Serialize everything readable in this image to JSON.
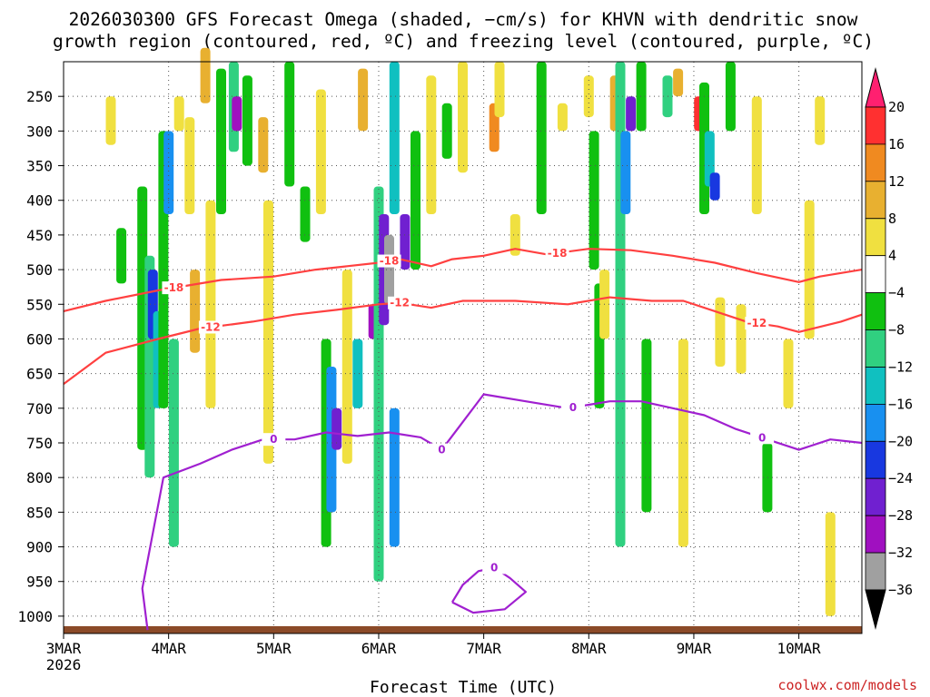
{
  "colors": {
    "background": "#ffffff",
    "ground": "#8b4a28",
    "dgz_contour": "#ff4040",
    "freezing_contour": "#a020d0",
    "grid": "#555555",
    "credit": "#cc2222"
  },
  "chart_data": {
    "type": "heatmap",
    "title_lines": [
      "2026030300 GFS Forecast Omega (shaded, −cm/s) for KHVN with dendritic snow",
      "growth region (contoured, red, ºC) and freezing level (contoured, purple, ºC)"
    ],
    "xlabel": "Forecast Time (UTC)",
    "ylabel": "",
    "credit": "coolwx.com/models",
    "x_unit": "days since 2026-03-03 00Z",
    "xlim": [
      0,
      7.6
    ],
    "ylim_hpa": [
      200,
      1025
    ],
    "x_ticks": [
      {
        "x": 0,
        "label": "3MAR",
        "sublabel": "2026"
      },
      {
        "x": 1,
        "label": "4MAR",
        "sublabel": ""
      },
      {
        "x": 2,
        "label": "5MAR",
        "sublabel": ""
      },
      {
        "x": 3,
        "label": "6MAR",
        "sublabel": ""
      },
      {
        "x": 4,
        "label": "7MAR",
        "sublabel": ""
      },
      {
        "x": 5,
        "label": "8MAR",
        "sublabel": ""
      },
      {
        "x": 6,
        "label": "9MAR",
        "sublabel": ""
      },
      {
        "x": 7,
        "label": "10MAR",
        "sublabel": ""
      }
    ],
    "y_ticks": [
      250,
      300,
      350,
      400,
      450,
      500,
      550,
      600,
      650,
      700,
      750,
      800,
      850,
      900,
      950,
      1000
    ],
    "colorbar": {
      "labels": [
        "20",
        "16",
        "12",
        "8",
        "4",
        "−4",
        "−8",
        "−12",
        "−16",
        "−20",
        "−24",
        "−28",
        "−32",
        "−36"
      ],
      "colors": [
        "#ff2070",
        "#ff3030",
        "#f08a20",
        "#e8b030",
        "#f0e040",
        "#ffffff",
        "#10c010",
        "#30d080",
        "#10c0c0",
        "#1890f0",
        "#1838e0",
        "#7020d0",
        "#a010c0",
        "#a0a0a0",
        "#000000"
      ]
    },
    "omega_cells": [
      {
        "t": 0.45,
        "p1": 250,
        "p2": 320,
        "v": 6
      },
      {
        "t": 0.55,
        "p1": 440,
        "p2": 520,
        "v": -6
      },
      {
        "t": 0.75,
        "p1": 380,
        "p2": 760,
        "v": -8
      },
      {
        "t": 0.82,
        "p1": 480,
        "p2": 800,
        "v": -12
      },
      {
        "t": 0.85,
        "p1": 500,
        "p2": 600,
        "v": -22
      },
      {
        "t": 0.9,
        "p1": 560,
        "p2": 700,
        "v": -14
      },
      {
        "t": 0.95,
        "p1": 300,
        "p2": 700,
        "v": -8
      },
      {
        "t": 1.0,
        "p1": 300,
        "p2": 420,
        "v": -20
      },
      {
        "t": 1.05,
        "p1": 600,
        "p2": 900,
        "v": -10
      },
      {
        "t": 1.1,
        "p1": 250,
        "p2": 300,
        "v": 6
      },
      {
        "t": 1.2,
        "p1": 280,
        "p2": 420,
        "v": 6
      },
      {
        "t": 1.25,
        "p1": 500,
        "p2": 620,
        "v": 8
      },
      {
        "t": 1.35,
        "p1": 180,
        "p2": 260,
        "v": 10
      },
      {
        "t": 1.4,
        "p1": 400,
        "p2": 700,
        "v": 6
      },
      {
        "t": 1.5,
        "p1": 210,
        "p2": 420,
        "v": -6
      },
      {
        "t": 1.62,
        "p1": 200,
        "p2": 330,
        "v": -10
      },
      {
        "t": 1.65,
        "p1": 250,
        "p2": 300,
        "v": -30
      },
      {
        "t": 1.75,
        "p1": 220,
        "p2": 350,
        "v": -6
      },
      {
        "t": 1.9,
        "p1": 280,
        "p2": 360,
        "v": 10
      },
      {
        "t": 1.95,
        "p1": 400,
        "p2": 780,
        "v": 4
      },
      {
        "t": 2.15,
        "p1": 200,
        "p2": 380,
        "v": -8
      },
      {
        "t": 2.3,
        "p1": 380,
        "p2": 460,
        "v": -8
      },
      {
        "t": 2.45,
        "p1": 240,
        "p2": 420,
        "v": 6
      },
      {
        "t": 2.5,
        "p1": 600,
        "p2": 900,
        "v": -8
      },
      {
        "t": 2.55,
        "p1": 640,
        "p2": 850,
        "v": -18
      },
      {
        "t": 2.6,
        "p1": 700,
        "p2": 760,
        "v": -26
      },
      {
        "t": 2.7,
        "p1": 500,
        "p2": 780,
        "v": 6
      },
      {
        "t": 2.8,
        "p1": 600,
        "p2": 700,
        "v": -14
      },
      {
        "t": 2.85,
        "p1": 210,
        "p2": 300,
        "v": 10
      },
      {
        "t": 2.95,
        "p1": 550,
        "p2": 600,
        "v": -30
      },
      {
        "t": 3.0,
        "p1": 380,
        "p2": 950,
        "v": -12
      },
      {
        "t": 3.05,
        "p1": 420,
        "p2": 580,
        "v": -26
      },
      {
        "t": 3.1,
        "p1": 450,
        "p2": 550,
        "v": -34
      },
      {
        "t": 3.15,
        "p1": 200,
        "p2": 420,
        "v": -16
      },
      {
        "t": 3.15,
        "p1": 700,
        "p2": 900,
        "v": -20
      },
      {
        "t": 3.25,
        "p1": 420,
        "p2": 500,
        "v": -28
      },
      {
        "t": 3.35,
        "p1": 300,
        "p2": 500,
        "v": -8
      },
      {
        "t": 3.5,
        "p1": 220,
        "p2": 420,
        "v": 6
      },
      {
        "t": 3.65,
        "p1": 260,
        "p2": 340,
        "v": -8
      },
      {
        "t": 3.8,
        "p1": 200,
        "p2": 360,
        "v": 6
      },
      {
        "t": 4.1,
        "p1": 260,
        "p2": 330,
        "v": 14
      },
      {
        "t": 4.15,
        "p1": 200,
        "p2": 280,
        "v": 6
      },
      {
        "t": 4.3,
        "p1": 420,
        "p2": 480,
        "v": 6
      },
      {
        "t": 4.55,
        "p1": 200,
        "p2": 420,
        "v": -8
      },
      {
        "t": 4.75,
        "p1": 260,
        "p2": 300,
        "v": 4
      },
      {
        "t": 5.0,
        "p1": 220,
        "p2": 280,
        "v": 6
      },
      {
        "t": 5.05,
        "p1": 300,
        "p2": 500,
        "v": -8
      },
      {
        "t": 5.1,
        "p1": 520,
        "p2": 700,
        "v": -6
      },
      {
        "t": 5.15,
        "p1": 500,
        "p2": 600,
        "v": 6
      },
      {
        "t": 5.25,
        "p1": 220,
        "p2": 300,
        "v": 10
      },
      {
        "t": 5.3,
        "p1": 200,
        "p2": 900,
        "v": -10
      },
      {
        "t": 5.35,
        "p1": 300,
        "p2": 420,
        "v": -18
      },
      {
        "t": 5.4,
        "p1": 250,
        "p2": 300,
        "v": -26
      },
      {
        "t": 5.5,
        "p1": 200,
        "p2": 300,
        "v": -8
      },
      {
        "t": 5.55,
        "p1": 600,
        "p2": 850,
        "v": -8
      },
      {
        "t": 5.75,
        "p1": 220,
        "p2": 280,
        "v": -10
      },
      {
        "t": 5.85,
        "p1": 210,
        "p2": 250,
        "v": 10
      },
      {
        "t": 5.9,
        "p1": 600,
        "p2": 900,
        "v": 6
      },
      {
        "t": 6.05,
        "p1": 250,
        "p2": 300,
        "v": 16
      },
      {
        "t": 6.1,
        "p1": 230,
        "p2": 420,
        "v": -6
      },
      {
        "t": 6.15,
        "p1": 300,
        "p2": 380,
        "v": -14
      },
      {
        "t": 6.2,
        "p1": 360,
        "p2": 400,
        "v": -22
      },
      {
        "t": 6.25,
        "p1": 540,
        "p2": 640,
        "v": 6
      },
      {
        "t": 6.35,
        "p1": 200,
        "p2": 300,
        "v": -8
      },
      {
        "t": 6.45,
        "p1": 550,
        "p2": 650,
        "v": 4
      },
      {
        "t": 6.6,
        "p1": 250,
        "p2": 420,
        "v": 6
      },
      {
        "t": 6.7,
        "p1": 750,
        "p2": 850,
        "v": -6
      },
      {
        "t": 6.9,
        "p1": 600,
        "p2": 700,
        "v": 6
      },
      {
        "t": 7.1,
        "p1": 400,
        "p2": 600,
        "v": 4
      },
      {
        "t": 7.2,
        "p1": 250,
        "p2": 320,
        "v": 6
      },
      {
        "t": 7.3,
        "p1": 850,
        "p2": 1000,
        "v": 4
      }
    ],
    "dgz_contours": [
      {
        "label": "-18",
        "label_t": 3.1,
        "points": [
          [
            0,
            560
          ],
          [
            0.4,
            545
          ],
          [
            0.9,
            530
          ],
          [
            1.5,
            515
          ],
          [
            2.0,
            510
          ],
          [
            2.4,
            500
          ],
          [
            2.7,
            495
          ],
          [
            3.0,
            490
          ],
          [
            3.2,
            485
          ],
          [
            3.5,
            495
          ],
          [
            3.7,
            485
          ],
          [
            4.0,
            480
          ],
          [
            4.3,
            470
          ],
          [
            4.6,
            478
          ],
          [
            5.0,
            470
          ],
          [
            5.4,
            472
          ],
          [
            5.8,
            480
          ],
          [
            6.2,
            490
          ],
          [
            6.6,
            505
          ],
          [
            7.0,
            518
          ],
          [
            7.2,
            510
          ],
          [
            7.6,
            500
          ]
        ],
        "label2": "-18",
        "label2_t": 1.05,
        "label3": "-18",
        "label3_t": 4.7
      },
      {
        "label": "-12",
        "label_t": 3.2,
        "points": [
          [
            0,
            665
          ],
          [
            0.4,
            620
          ],
          [
            0.9,
            600
          ],
          [
            1.3,
            585
          ],
          [
            1.8,
            575
          ],
          [
            2.2,
            565
          ],
          [
            2.6,
            558
          ],
          [
            3.0,
            550
          ],
          [
            3.2,
            548
          ],
          [
            3.5,
            555
          ],
          [
            3.8,
            545
          ],
          [
            4.3,
            545
          ],
          [
            4.8,
            550
          ],
          [
            5.2,
            540
          ],
          [
            5.6,
            545
          ],
          [
            5.9,
            545
          ],
          [
            6.2,
            560
          ],
          [
            6.5,
            575
          ],
          [
            6.8,
            582
          ],
          [
            7.0,
            590
          ],
          [
            7.4,
            575
          ],
          [
            7.6,
            565
          ]
        ],
        "label2": "-12",
        "label2_t": 1.4,
        "label3": "-12",
        "label3_t": 6.6
      }
    ],
    "freezing_contours": [
      {
        "label": "0",
        "label_t": 2.0,
        "points": [
          [
            0.8,
            1020
          ],
          [
            0.75,
            960
          ],
          [
            0.85,
            880
          ],
          [
            0.95,
            800
          ],
          [
            1.3,
            780
          ],
          [
            1.6,
            760
          ],
          [
            1.9,
            745
          ],
          [
            2.2,
            745
          ],
          [
            2.5,
            735
          ],
          [
            2.8,
            740
          ],
          [
            3.1,
            735
          ],
          [
            3.4,
            742
          ],
          [
            3.6,
            760
          ],
          [
            3.8,
            720
          ],
          [
            4.0,
            680
          ],
          [
            4.4,
            690
          ],
          [
            4.8,
            700
          ],
          [
            5.0,
            695
          ],
          [
            5.2,
            690
          ],
          [
            5.5,
            690
          ],
          [
            5.8,
            700
          ],
          [
            6.1,
            710
          ],
          [
            6.4,
            730
          ],
          [
            6.7,
            745
          ],
          [
            7.0,
            760
          ],
          [
            7.3,
            745
          ],
          [
            7.6,
            750
          ]
        ],
        "label2": "0",
        "label2_t": 4.85,
        "label3": "0",
        "label3_t": 6.65,
        "label4": "0",
        "label4_t": 3.6
      },
      {
        "label": "0",
        "label_t": 4.1,
        "points": [
          [
            3.7,
            980
          ],
          [
            3.8,
            955
          ],
          [
            3.95,
            935
          ],
          [
            4.1,
            930
          ],
          [
            4.25,
            945
          ],
          [
            4.4,
            965
          ],
          [
            4.2,
            990
          ],
          [
            3.9,
            995
          ],
          [
            3.7,
            980
          ]
        ]
      }
    ]
  }
}
